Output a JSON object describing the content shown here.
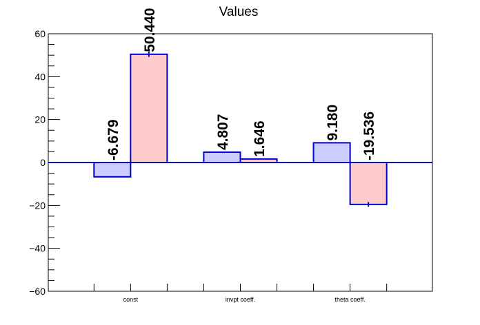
{
  "chart_data": {
    "type": "bar",
    "title": "Values",
    "xlabel": "",
    "ylabel": "",
    "categories": [
      "const",
      "invpt coeff.",
      "theta coeff."
    ],
    "series": [
      {
        "values": [
          -6.679,
          4.807,
          9.18
        ],
        "labels": [
          "-6.679",
          "4.807",
          "9.180"
        ],
        "fill": "#ccccff",
        "stroke": "#0000cc"
      },
      {
        "values": [
          50.44,
          1.646,
          -19.536
        ],
        "labels": [
          "50.440",
          "1.646",
          "-19.536"
        ],
        "errors": [
          1.2,
          0.3,
          1.1
        ],
        "fill": "#ffcccc",
        "stroke": "#0000cc"
      }
    ],
    "ylim": [
      -60,
      60
    ],
    "yticks": [
      -60,
      -40,
      -20,
      0,
      20,
      40,
      60
    ],
    "ytick_labels": [
      "−60",
      "−40",
      "−20",
      "0",
      "20",
      "40",
      "60"
    ],
    "grid": false,
    "legend": "none"
  }
}
